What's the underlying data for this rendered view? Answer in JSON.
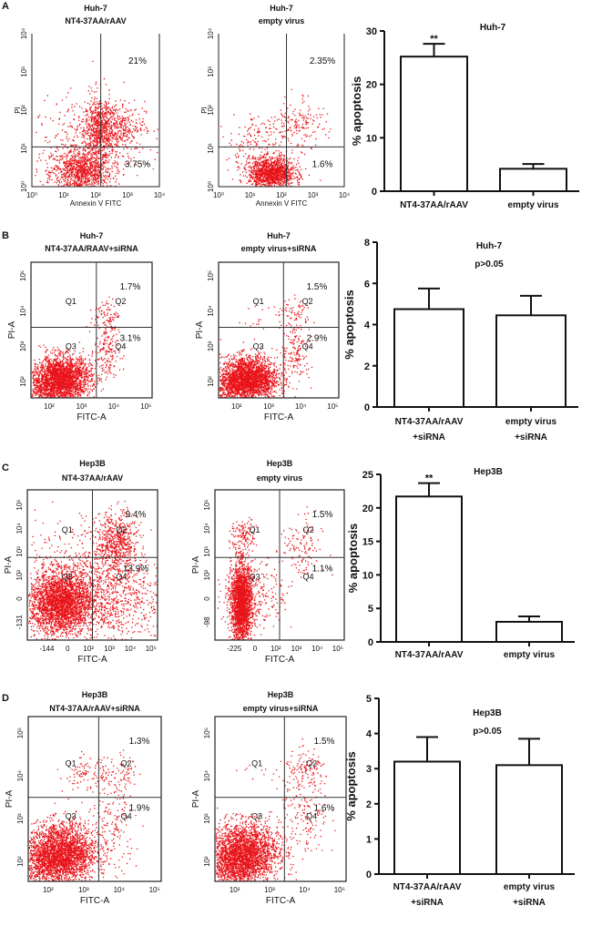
{
  "colors": {
    "dots": "#e8141a",
    "axis": "#111111",
    "bar_fill": "#ffffff"
  },
  "panels": [
    {
      "label": "A",
      "flow": [
        {
          "title_lines": [
            "Huh-7",
            "NT4-37AA/rAAV"
          ],
          "xlabel": "Annexin V FITC",
          "ylabel": "PI",
          "x_ticks": [
            "10⁰",
            "10¹",
            "10²",
            "10³",
            "10⁴"
          ],
          "y_ticks": [
            "10⁰",
            "10¹",
            "10²",
            "10³",
            "10⁴"
          ],
          "quadrant_labels": [],
          "upper_right_pct": "21%",
          "lower_right_pct": "3.75%"
        },
        {
          "title_lines": [
            "Huh-7",
            "empty virus"
          ],
          "xlabel": "Annexin V FITC",
          "ylabel": "PI",
          "x_ticks": [
            "10⁰",
            "10¹",
            "10²",
            "10³",
            "10⁴"
          ],
          "y_ticks": [
            "10⁰",
            "10¹",
            "10²",
            "10³",
            "10⁴"
          ],
          "quadrant_labels": [],
          "upper_right_pct": "2.35%",
          "lower_right_pct": "1.6%"
        }
      ]
    },
    {
      "label": "B",
      "flow": [
        {
          "title_lines": [
            "Huh-7",
            "NT4-37AA/RAAV+siRNA"
          ],
          "xlabel": "FITC-A",
          "ylabel": "PI-A",
          "x_ticks": [
            "10²",
            "10³",
            "10⁴",
            "10⁵"
          ],
          "y_ticks": [
            "10²",
            "10³",
            "10⁴",
            "10⁵"
          ],
          "quadrant_labels": [
            "Q1",
            "Q2",
            "Q3",
            "Q4"
          ],
          "upper_right_pct": "1.7%",
          "lower_right_pct": "3.1%"
        },
        {
          "title_lines": [
            "Huh-7",
            "empty virus+siRNA"
          ],
          "xlabel": "FITC-A",
          "ylabel": "PI-A",
          "x_ticks": [
            "10²",
            "10³",
            "10⁴",
            "10⁵"
          ],
          "y_ticks": [
            "10²",
            "10³",
            "10⁴",
            "10⁵"
          ],
          "quadrant_labels": [
            "Q1",
            "Q2",
            "Q3",
            "Q4"
          ],
          "upper_right_pct": "1.5%",
          "lower_right_pct": "2.9%"
        }
      ]
    },
    {
      "label": "C",
      "flow": [
        {
          "title_lines": [
            "Hep3B",
            "NT4-37AA/rAAV"
          ],
          "xlabel": "FITC-A",
          "ylabel": "PI-A",
          "x_ticks": [
            "-144",
            "0",
            "10²",
            "10³",
            "10⁴",
            "10⁵"
          ],
          "y_ticks": [
            "-131",
            "0",
            "10²",
            "10³",
            "10⁴",
            "10⁵"
          ],
          "quadrant_labels": [
            "Q1",
            "Q2",
            "Q3",
            "Q4"
          ],
          "upper_right_pct": "9.4%",
          "lower_right_pct": "13.9%"
        },
        {
          "title_lines": [
            "Hep3B",
            "empty virus"
          ],
          "xlabel": "FITC-A",
          "ylabel": "PI-A",
          "x_ticks": [
            "-225",
            "0",
            "10²",
            "10³",
            "10⁴",
            "10⁵"
          ],
          "y_ticks": [
            "-98",
            "0",
            "10²",
            "10³",
            "10⁴",
            "10⁵"
          ],
          "quadrant_labels": [
            "Q1",
            "Q2",
            "Q3",
            "Q4"
          ],
          "upper_right_pct": "1.5%",
          "lower_right_pct": "1.1%"
        }
      ]
    },
    {
      "label": "D",
      "flow": [
        {
          "title_lines": [
            "Hep3B",
            "NT4-37AA/rAAV+siRNA"
          ],
          "xlabel": "FITC-A",
          "ylabel": "PI-A",
          "x_ticks": [
            "10²",
            "10³",
            "10⁴",
            "10⁵"
          ],
          "y_ticks": [
            "10²",
            "10³",
            "10⁴",
            "10⁵"
          ],
          "quadrant_labels": [
            "Q1",
            "Q2",
            "Q3",
            "Q4"
          ],
          "upper_right_pct": "1.3%",
          "lower_right_pct": "1.9%"
        },
        {
          "title_lines": [
            "Hep3B",
            "empty virus+siRNA"
          ],
          "xlabel": "FITC-A",
          "ylabel": "PI-A",
          "x_ticks": [
            "10²",
            "10³",
            "10⁴",
            "10⁵"
          ],
          "y_ticks": [
            "10²",
            "10³",
            "10⁴",
            "10⁵"
          ],
          "quadrant_labels": [
            "Q1",
            "Q2",
            "Q3",
            "Q4"
          ],
          "upper_right_pct": "1.5%",
          "lower_right_pct": "1.6%"
        }
      ]
    }
  ],
  "chart_data": [
    {
      "type": "bar",
      "title": "Huh-7",
      "subtitle": "",
      "ylabel": "% apoptosis",
      "xlabel": "",
      "categories": [
        [
          "NT4-37AA/rAAV"
        ],
        [
          "empty virus"
        ]
      ],
      "values": [
        25.2,
        4.2
      ],
      "error_upper": [
        27.6,
        5.1
      ],
      "annotations": [
        "**",
        ""
      ],
      "ylim": [
        0,
        30
      ],
      "y_ticks": [
        0,
        10,
        20,
        30
      ],
      "grid": false
    },
    {
      "type": "bar",
      "title": "Huh-7",
      "subtitle": "p>0.05",
      "ylabel": "% apoptosis",
      "xlabel": "",
      "categories": [
        [
          "NT4-37AA/rAAV",
          "+siRNA"
        ],
        [
          "empty virus",
          "+siRNA"
        ]
      ],
      "values": [
        4.75,
        4.45
      ],
      "error_upper": [
        5.75,
        5.4
      ],
      "annotations": [
        "",
        ""
      ],
      "ylim": [
        0,
        8
      ],
      "y_ticks": [
        0,
        2,
        4,
        6,
        8
      ],
      "grid": false
    },
    {
      "type": "bar",
      "title": "Hep3B",
      "subtitle": "",
      "ylabel": "% apoptosis",
      "xlabel": "",
      "categories": [
        [
          "NT4-37AA/rAAV"
        ],
        [
          "empty virus"
        ]
      ],
      "values": [
        21.7,
        3.0
      ],
      "error_upper": [
        23.7,
        3.8
      ],
      "annotations": [
        "**",
        ""
      ],
      "ylim": [
        0,
        25
      ],
      "y_ticks": [
        0,
        5,
        10,
        15,
        20,
        25
      ],
      "grid": false
    },
    {
      "type": "bar",
      "title": "Hep3B",
      "subtitle": "p>0.05",
      "ylabel": "% apoptosis",
      "xlabel": "",
      "categories": [
        [
          "NT4-37AA/rAAV",
          "+siRNA"
        ],
        [
          "empty virus",
          "+siRNA"
        ]
      ],
      "values": [
        3.2,
        3.1
      ],
      "error_upper": [
        3.9,
        3.85
      ],
      "annotations": [
        "",
        ""
      ],
      "ylim": [
        0,
        5
      ],
      "y_ticks": [
        0,
        1,
        2,
        3,
        4,
        5
      ],
      "grid": false
    }
  ]
}
